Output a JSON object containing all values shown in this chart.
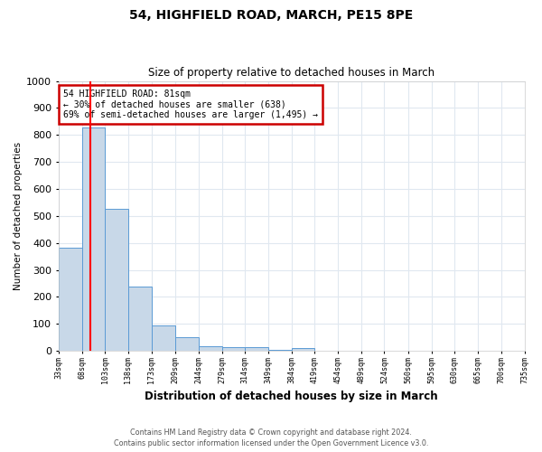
{
  "title": "54, HIGHFIELD ROAD, MARCH, PE15 8PE",
  "subtitle": "Size of property relative to detached houses in March",
  "xlabel": "Distribution of detached houses by size in March",
  "ylabel": "Number of detached properties",
  "bar_color": "#c8d8e8",
  "bar_edge_color": "#5b9bd5",
  "red_line_x": 81,
  "annotation_title": "54 HIGHFIELD ROAD: 81sqm",
  "annotation_line1": "← 30% of detached houses are smaller (638)",
  "annotation_line2": "69% of semi-detached houses are larger (1,495) →",
  "annotation_box_color": "#ffffff",
  "annotation_box_edge": "#cc0000",
  "footer_line1": "Contains HM Land Registry data © Crown copyright and database right 2024.",
  "footer_line2": "Contains public sector information licensed under the Open Government Licence v3.0.",
  "bin_edges": [
    33,
    68,
    103,
    138,
    173,
    209,
    244,
    279,
    314,
    349,
    384,
    419,
    454,
    489,
    524,
    560,
    595,
    630,
    665,
    700,
    735
  ],
  "bin_heights": [
    383,
    827,
    527,
    239,
    95,
    52,
    18,
    13,
    13,
    5,
    10,
    0,
    0,
    0,
    0,
    0,
    0,
    0,
    0,
    0
  ],
  "ylim": [
    0,
    1000
  ],
  "ytick_interval": 100,
  "background_color": "#ffffff",
  "plot_bg_color": "#ffffff",
  "grid_color": "#e0e8f0"
}
